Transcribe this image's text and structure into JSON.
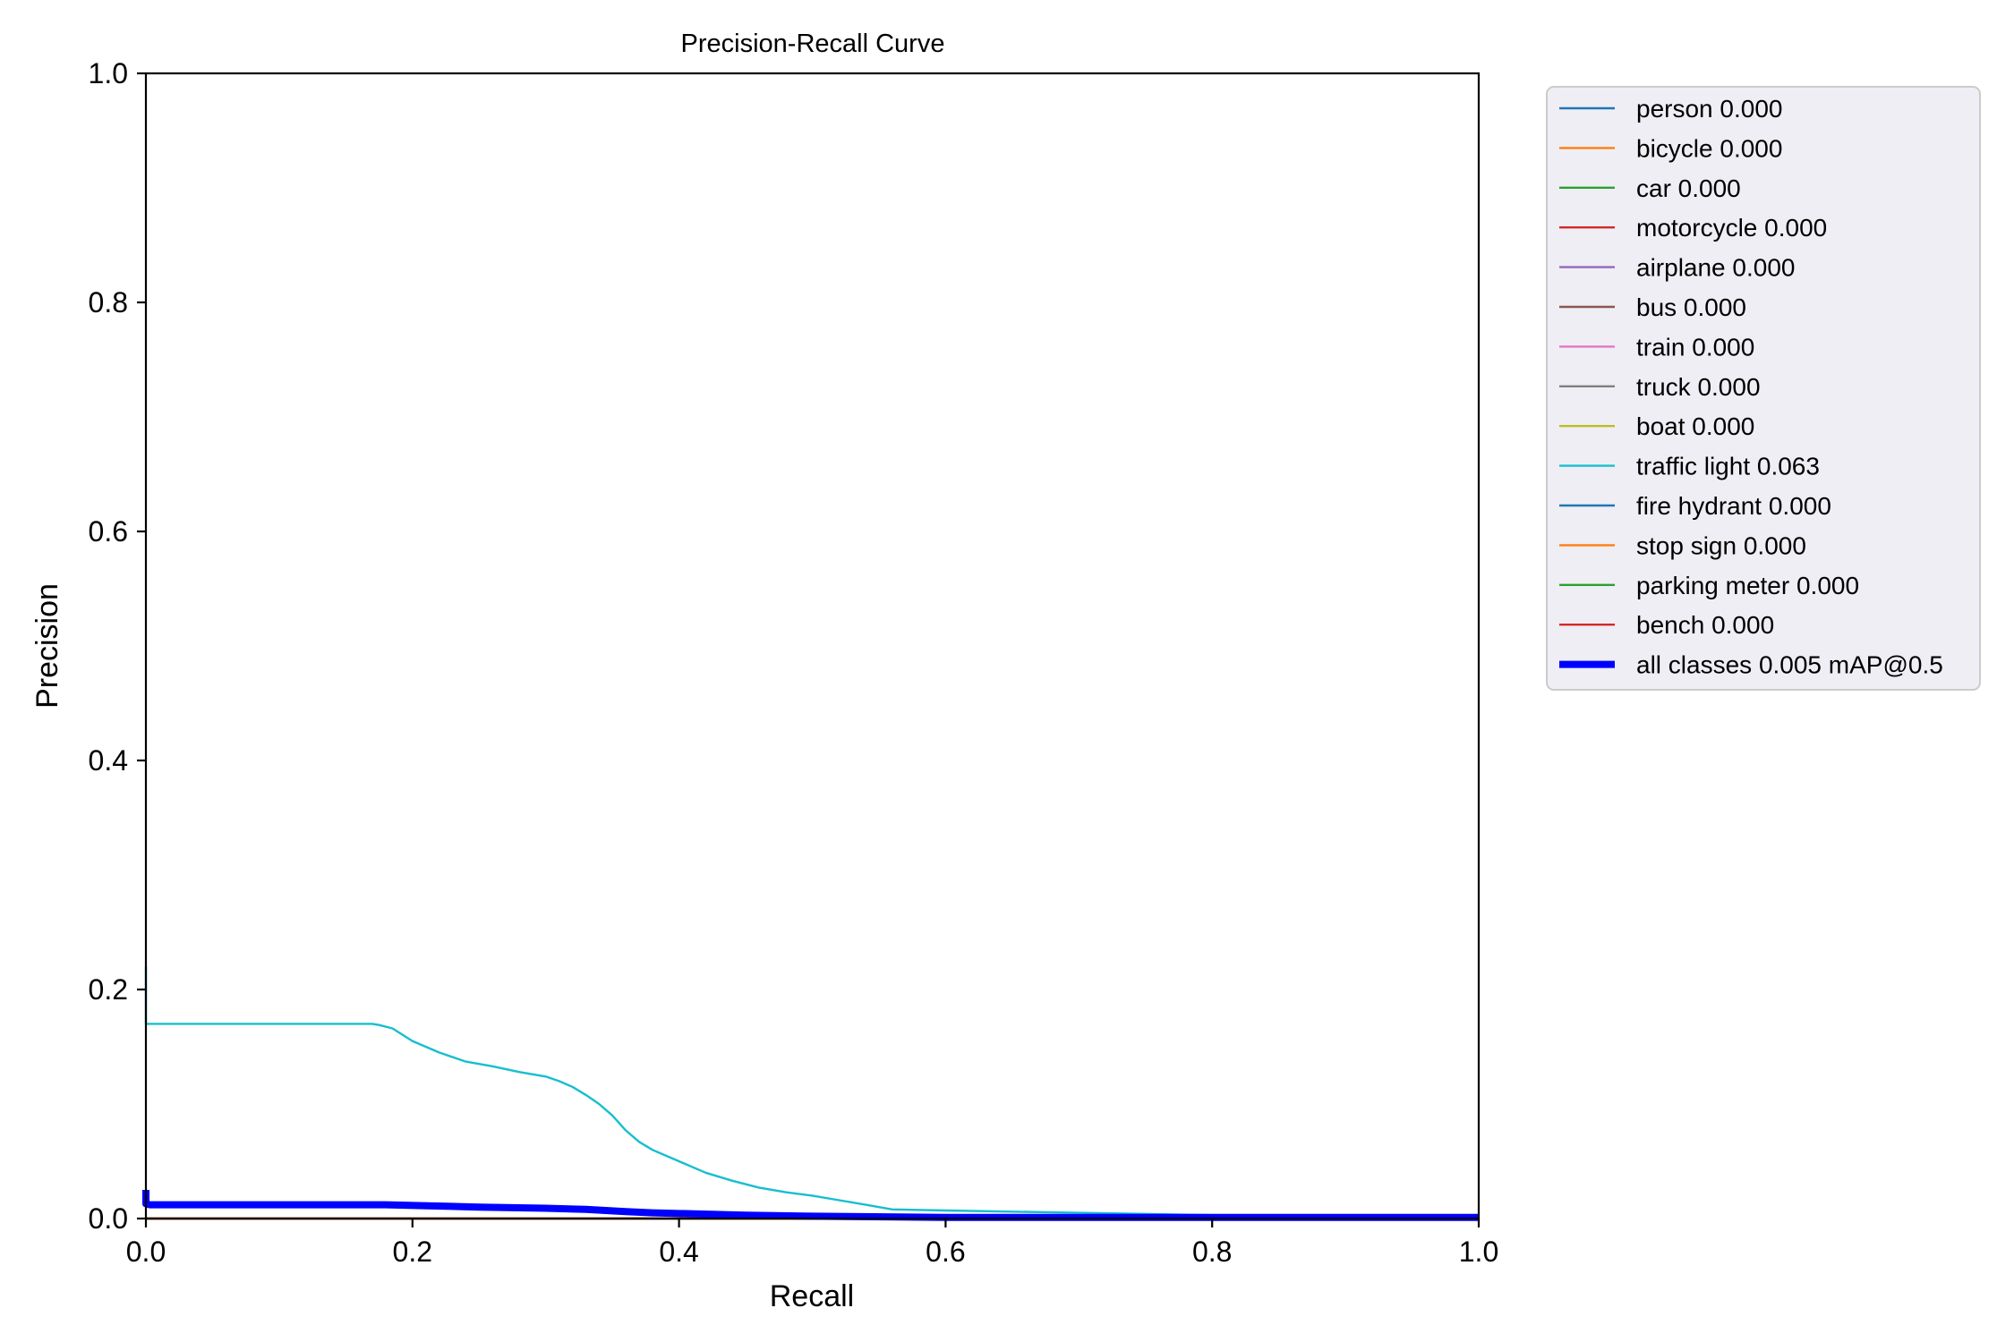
{
  "chart_data": {
    "type": "line",
    "title": "Precision-Recall Curve",
    "xlabel": "Recall",
    "ylabel": "Precision",
    "xlim": [
      0.0,
      1.0
    ],
    "ylim": [
      0.0,
      1.0
    ],
    "x_ticks": [
      "0.0",
      "0.2",
      "0.4",
      "0.6",
      "0.8",
      "1.0"
    ],
    "y_ticks": [
      "0.0",
      "0.2",
      "0.4",
      "0.6",
      "0.8",
      "1.0"
    ],
    "grid": false,
    "legend_position": "outside-top-right",
    "series": [
      {
        "name": "person 0.000",
        "color": "#1f77b4",
        "x": [
          0.0,
          1.0
        ],
        "y": [
          0.0,
          0.0
        ]
      },
      {
        "name": "bicycle 0.000",
        "color": "#ff7f0e",
        "x": [
          0.0,
          1.0
        ],
        "y": [
          0.0,
          0.0
        ]
      },
      {
        "name": "car 0.000",
        "color": "#2ca02c",
        "x": [
          0.0,
          1.0
        ],
        "y": [
          0.0,
          0.0
        ]
      },
      {
        "name": "motorcycle 0.000",
        "color": "#d62728",
        "x": [
          0.0,
          1.0
        ],
        "y": [
          0.0,
          0.0
        ]
      },
      {
        "name": "airplane 0.000",
        "color": "#9467bd",
        "x": [
          0.0,
          1.0
        ],
        "y": [
          0.0,
          0.0
        ]
      },
      {
        "name": "bus 0.000",
        "color": "#8c564b",
        "x": [
          0.0,
          1.0
        ],
        "y": [
          0.0,
          0.0
        ]
      },
      {
        "name": "train 0.000",
        "color": "#e377c2",
        "x": [
          0.0,
          1.0
        ],
        "y": [
          0.0,
          0.0
        ]
      },
      {
        "name": "truck 0.000",
        "color": "#7f7f7f",
        "x": [
          0.0,
          1.0
        ],
        "y": [
          0.0,
          0.0
        ]
      },
      {
        "name": "boat 0.000",
        "color": "#bcbd22",
        "x": [
          0.0,
          1.0
        ],
        "y": [
          0.0,
          0.0
        ]
      },
      {
        "name": "traffic light 0.063",
        "color": "#17becf",
        "x": [
          0.0,
          0.0,
          0.17,
          0.175,
          0.185,
          0.2,
          0.22,
          0.24,
          0.26,
          0.28,
          0.3,
          0.31,
          0.32,
          0.33,
          0.34,
          0.35,
          0.36,
          0.37,
          0.38,
          0.39,
          0.4,
          0.42,
          0.44,
          0.46,
          0.48,
          0.5,
          0.52,
          0.54,
          0.56,
          0.6,
          0.7,
          0.8,
          0.9,
          1.0
        ],
        "y": [
          0.22,
          0.17,
          0.17,
          0.169,
          0.166,
          0.155,
          0.145,
          0.137,
          0.133,
          0.128,
          0.124,
          0.12,
          0.115,
          0.108,
          0.1,
          0.09,
          0.077,
          0.067,
          0.06,
          0.055,
          0.05,
          0.04,
          0.033,
          0.027,
          0.023,
          0.02,
          0.016,
          0.012,
          0.008,
          0.007,
          0.005,
          0.003,
          0.002,
          0.002
        ]
      },
      {
        "name": "fire hydrant 0.000",
        "color": "#1f77b4",
        "x": [
          0.0,
          1.0
        ],
        "y": [
          0.0,
          0.0
        ]
      },
      {
        "name": "stop sign 0.000",
        "color": "#ff7f0e",
        "x": [
          0.0,
          1.0
        ],
        "y": [
          0.0,
          0.0
        ]
      },
      {
        "name": "parking meter 0.000",
        "color": "#2ca02c",
        "x": [
          0.0,
          1.0
        ],
        "y": [
          0.0,
          0.0
        ]
      },
      {
        "name": "bench 0.000",
        "color": "#d62728",
        "x": [
          0.0,
          1.0
        ],
        "y": [
          0.0,
          0.0
        ]
      },
      {
        "name": "all classes 0.005 mAP@0.5",
        "color": "#0000ff",
        "bold": true,
        "x": [
          0.0,
          0.0,
          0.003,
          0.18,
          0.25,
          0.3,
          0.33,
          0.36,
          0.38,
          0.45,
          0.5,
          0.6,
          0.8,
          1.0
        ],
        "y": [
          0.025,
          0.013,
          0.012,
          0.012,
          0.01,
          0.009,
          0.008,
          0.006,
          0.005,
          0.003,
          0.002,
          0.001,
          0.001,
          0.001
        ]
      }
    ]
  }
}
